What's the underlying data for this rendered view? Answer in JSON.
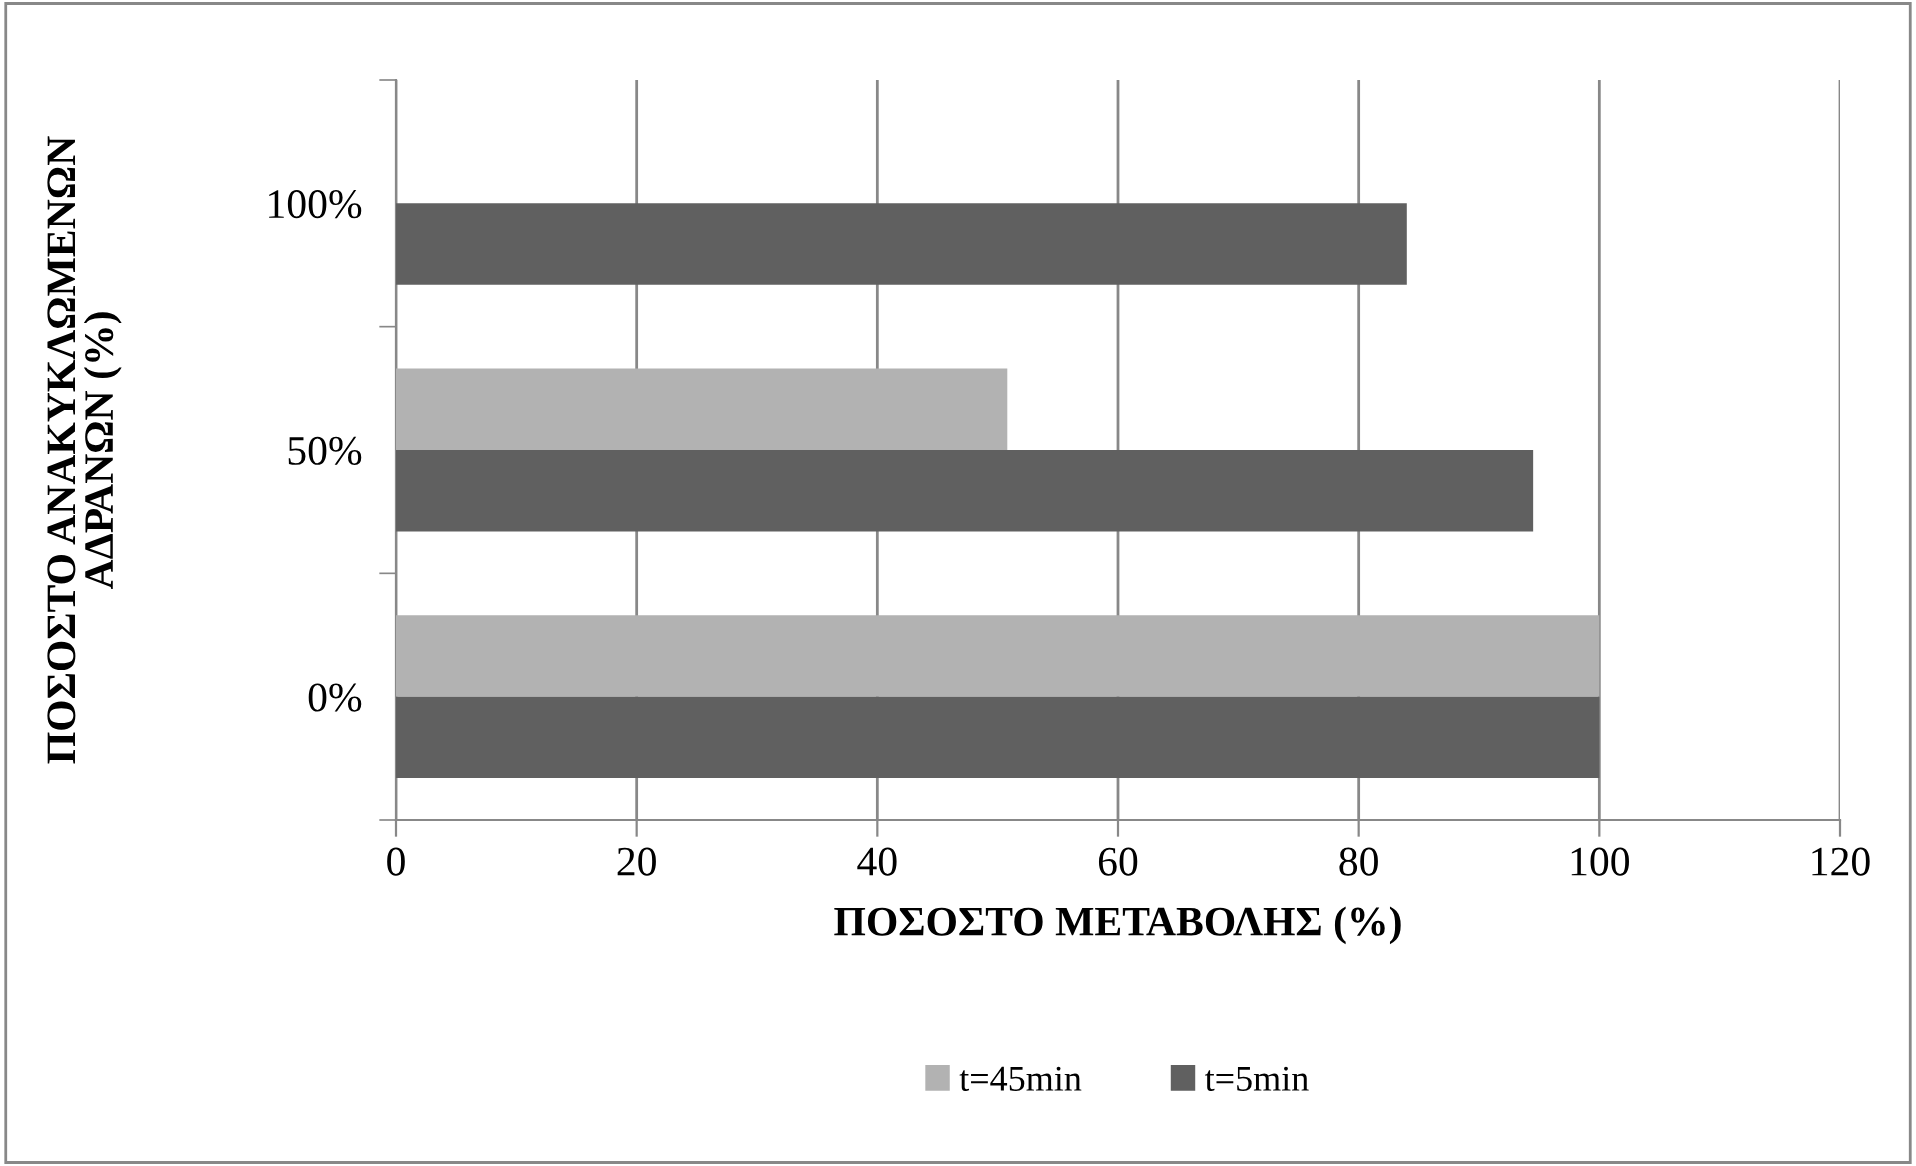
{
  "chart_data": {
    "type": "bar",
    "orientation": "horizontal",
    "xlabel": "ΠΟΣΟΣΤΟ ΜΕΤΑΒΟΛΗΣ (%)",
    "ylabel": "ΠΟΣΟΣΤΟ ΑΝΑΚΥΚΛΩΜΕΝΩΝ ΑΔΡΑΝΩΝ (%)",
    "categories": [
      "100%",
      "50%",
      "0%"
    ],
    "series": [
      {
        "name": "t=45min",
        "color": "#b2b2b2",
        "values": [
          null,
          50.8,
          100
        ]
      },
      {
        "name": "t=5min",
        "color": "#606060",
        "values": [
          84,
          94.5,
          100
        ]
      }
    ],
    "xlim": [
      0,
      120
    ],
    "xticks": [
      0,
      20,
      40,
      60,
      80,
      100,
      120
    ],
    "grid": "x",
    "legend": "bottom"
  }
}
